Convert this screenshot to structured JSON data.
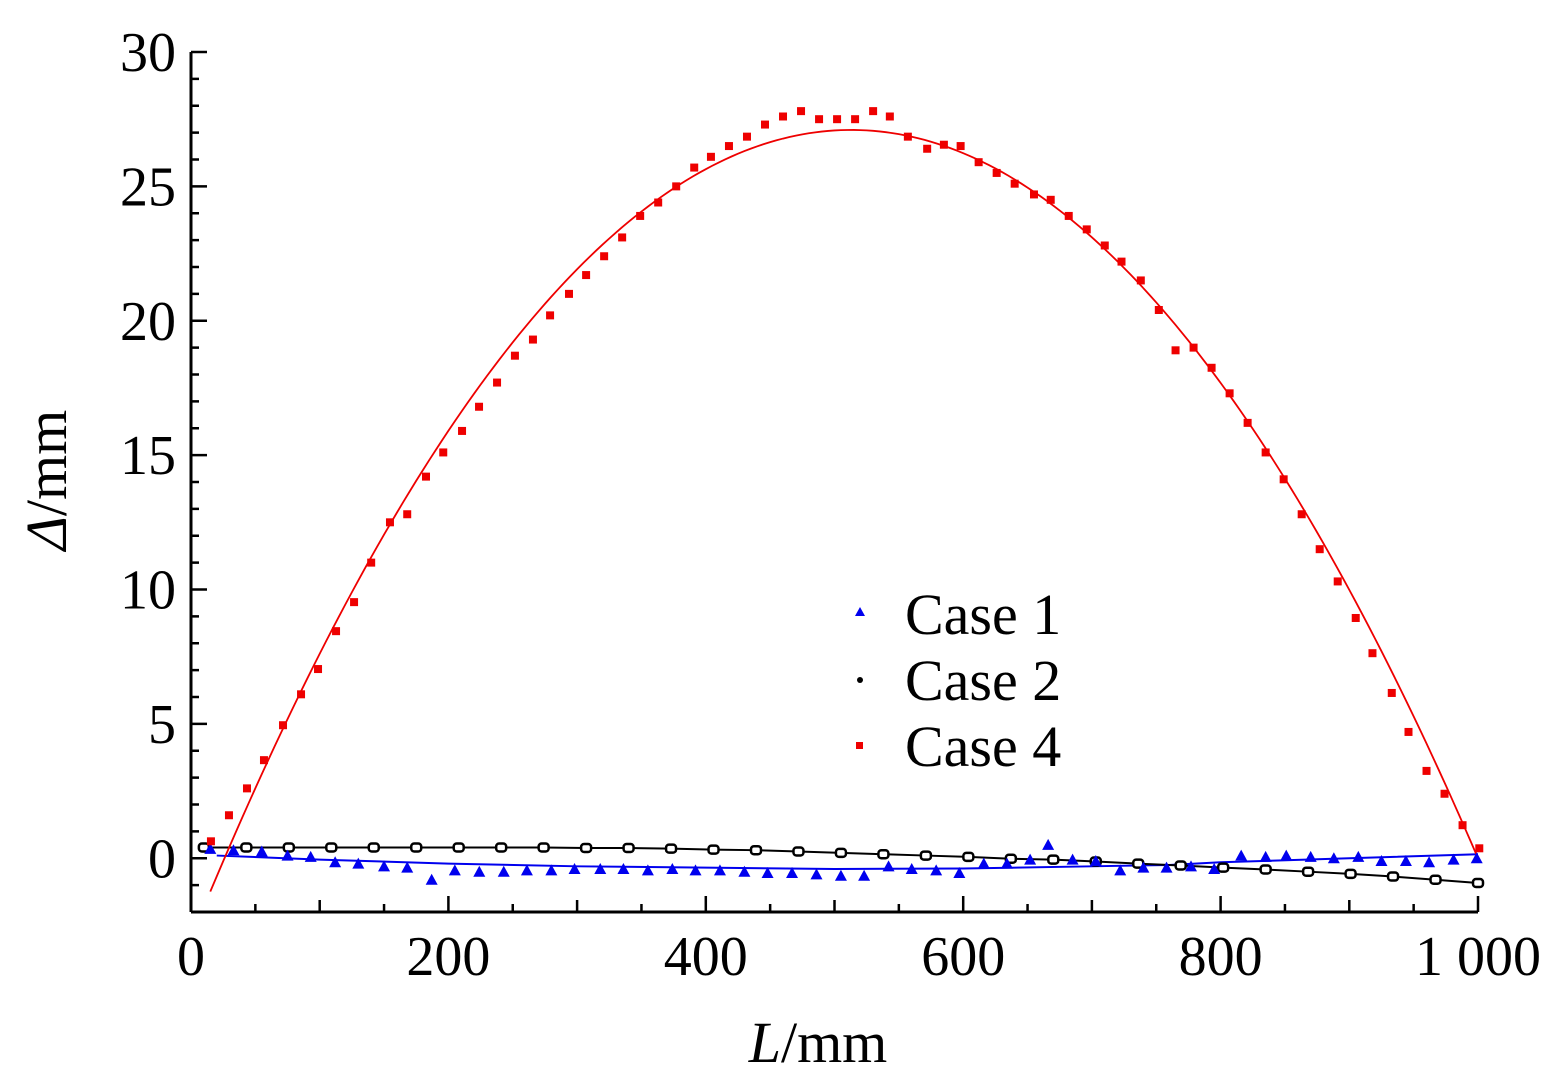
{
  "chart_data": {
    "type": "scatter",
    "title": "",
    "xlabel": "L/mm",
    "xlabel_var": "L",
    "xlabel_unit": "/mm",
    "ylabel": "Δ/mm",
    "ylabel_var": "Δ",
    "ylabel_unit": "/mm",
    "xlim": [
      0,
      1000
    ],
    "ylim": [
      -2,
      30
    ],
    "xticks": [
      0,
      200,
      400,
      600,
      800,
      1000
    ],
    "xtick_labels": [
      "0",
      "200",
      "400",
      "600",
      "800",
      "1 000"
    ],
    "yticks": [
      0,
      5,
      10,
      15,
      20,
      25,
      30
    ],
    "ytick_labels": [
      "0",
      "5",
      "10",
      "15",
      "20",
      "25",
      "30"
    ],
    "grid": false,
    "legend_position": "center",
    "series": [
      {
        "name": "Case 1",
        "color": "#0000ee",
        "marker": "triangle",
        "points": [
          [
            15,
            0.35
          ],
          [
            33,
            0.3
          ],
          [
            55,
            0.25
          ],
          [
            75,
            0.1
          ],
          [
            93,
            0.05
          ],
          [
            112,
            -0.15
          ],
          [
            130,
            -0.2
          ],
          [
            150,
            -0.3
          ],
          [
            168,
            -0.35
          ],
          [
            187,
            -0.8
          ],
          [
            205,
            -0.45
          ],
          [
            224,
            -0.5
          ],
          [
            243,
            -0.5
          ],
          [
            261,
            -0.45
          ],
          [
            280,
            -0.45
          ],
          [
            298,
            -0.4
          ],
          [
            318,
            -0.4
          ],
          [
            336,
            -0.4
          ],
          [
            355,
            -0.45
          ],
          [
            374,
            -0.4
          ],
          [
            392,
            -0.45
          ],
          [
            411,
            -0.45
          ],
          [
            430,
            -0.5
          ],
          [
            448,
            -0.55
          ],
          [
            467,
            -0.55
          ],
          [
            486,
            -0.6
          ],
          [
            505,
            -0.65
          ],
          [
            523,
            -0.65
          ],
          [
            542,
            -0.3
          ],
          [
            560,
            -0.4
          ],
          [
            579,
            -0.45
          ],
          [
            597,
            -0.55
          ],
          [
            616,
            -0.2
          ],
          [
            634,
            -0.2
          ],
          [
            652,
            -0.05
          ],
          [
            666,
            0.5
          ],
          [
            685,
            -0.05
          ],
          [
            703,
            -0.1
          ],
          [
            722,
            -0.45
          ],
          [
            740,
            -0.35
          ],
          [
            758,
            -0.35
          ],
          [
            777,
            -0.3
          ],
          [
            795,
            -0.4
          ],
          [
            816,
            0.1
          ],
          [
            835,
            0.05
          ],
          [
            851,
            0.1
          ],
          [
            870,
            0.05
          ],
          [
            888,
            0.0
          ],
          [
            907,
            0.05
          ],
          [
            925,
            -0.1
          ],
          [
            944,
            -0.1
          ],
          [
            962,
            -0.15
          ],
          [
            981,
            -0.05
          ],
          [
            999,
            0.0
          ]
        ],
        "fit": [
          [
            20,
            0.1
          ],
          [
            100,
            -0.05
          ],
          [
            200,
            -0.2
          ],
          [
            300,
            -0.3
          ],
          [
            400,
            -0.35
          ],
          [
            500,
            -0.4
          ],
          [
            600,
            -0.38
          ],
          [
            700,
            -0.3
          ],
          [
            760,
            -0.25
          ],
          [
            800,
            -0.15
          ],
          [
            900,
            0.0
          ],
          [
            1000,
            0.15
          ]
        ]
      },
      {
        "name": "Case 2",
        "color": "#000000",
        "marker": "circle",
        "points": [
          [
            10,
            0.4
          ],
          [
            43,
            0.4
          ],
          [
            76,
            0.4
          ],
          [
            109,
            0.4
          ],
          [
            142,
            0.4
          ],
          [
            175,
            0.4
          ],
          [
            208,
            0.4
          ],
          [
            241,
            0.4
          ],
          [
            274,
            0.4
          ],
          [
            307,
            0.38
          ],
          [
            340,
            0.38
          ],
          [
            373,
            0.36
          ],
          [
            406,
            0.32
          ],
          [
            439,
            0.3
          ],
          [
            472,
            0.25
          ],
          [
            505,
            0.2
          ],
          [
            538,
            0.15
          ],
          [
            571,
            0.1
          ],
          [
            604,
            0.05
          ],
          [
            637,
            -0.02
          ],
          [
            670,
            -0.05
          ],
          [
            703,
            -0.12
          ],
          [
            736,
            -0.2
          ],
          [
            769,
            -0.27
          ],
          [
            802,
            -0.35
          ],
          [
            835,
            -0.42
          ],
          [
            868,
            -0.5
          ],
          [
            901,
            -0.58
          ],
          [
            934,
            -0.68
          ],
          [
            967,
            -0.8
          ],
          [
            1000,
            -0.92
          ]
        ]
      },
      {
        "name": "Case 4",
        "color": "#ee0000",
        "marker": "square",
        "points": [
          [
            15.5,
            0.63
          ],
          [
            29.5,
            1.6
          ],
          [
            43.5,
            2.6
          ],
          [
            56.7,
            3.65
          ],
          [
            71.5,
            4.95
          ],
          [
            85.5,
            6.1
          ],
          [
            98.7,
            7.04
          ],
          [
            112.7,
            8.45
          ],
          [
            126.7,
            9.53
          ],
          [
            140,
            11.0
          ],
          [
            154.6,
            12.5
          ],
          [
            168,
            12.8
          ],
          [
            182.6,
            14.2
          ],
          [
            196,
            15.1
          ],
          [
            210.6,
            15.9
          ],
          [
            223.8,
            16.8
          ],
          [
            237.8,
            17.7
          ],
          [
            251.7,
            18.7
          ],
          [
            265.7,
            19.3
          ],
          [
            279,
            20.2
          ],
          [
            293.7,
            21.0
          ],
          [
            307,
            21.7
          ],
          [
            321,
            22.4
          ],
          [
            335,
            23.1
          ],
          [
            349,
            23.9
          ],
          [
            363,
            24.4
          ],
          [
            377,
            25.0
          ],
          [
            391,
            25.7
          ],
          [
            404,
            26.1
          ],
          [
            418,
            26.5
          ],
          [
            432,
            26.85
          ],
          [
            446,
            27.3
          ],
          [
            460,
            27.6
          ],
          [
            474,
            27.8
          ],
          [
            488,
            27.5
          ],
          [
            502,
            27.5
          ],
          [
            516,
            27.5
          ],
          [
            530,
            27.8
          ],
          [
            543,
            27.6
          ],
          [
            557,
            26.85
          ],
          [
            572,
            26.4
          ],
          [
            585,
            26.55
          ],
          [
            598,
            26.5
          ],
          [
            612,
            25.9
          ],
          [
            626,
            25.5
          ],
          [
            640,
            25.1
          ],
          [
            655,
            24.7
          ],
          [
            668,
            24.5
          ],
          [
            682,
            23.9
          ],
          [
            696,
            23.4
          ],
          [
            710,
            22.8
          ],
          [
            723,
            22.2
          ],
          [
            738,
            21.5
          ],
          [
            752,
            20.4
          ],
          [
            765,
            18.9
          ],
          [
            779,
            19.0
          ],
          [
            793,
            18.25
          ],
          [
            807,
            17.3
          ],
          [
            821,
            16.2
          ],
          [
            835,
            15.1
          ],
          [
            849,
            14.1
          ],
          [
            863,
            12.8
          ],
          [
            877,
            11.5
          ],
          [
            891,
            10.3
          ],
          [
            905,
            8.94
          ],
          [
            918,
            7.63
          ],
          [
            933,
            6.15
          ],
          [
            946,
            4.7
          ],
          [
            960,
            3.25
          ],
          [
            974,
            2.4
          ],
          [
            988,
            1.23
          ],
          [
            1001,
            0.37
          ]
        ],
        "fit_quadratic": {
          "vertex_x": 513,
          "vertex_y": 27.1,
          "a": -0.00011427,
          "x_range": [
            15,
            1000
          ]
        }
      }
    ]
  }
}
